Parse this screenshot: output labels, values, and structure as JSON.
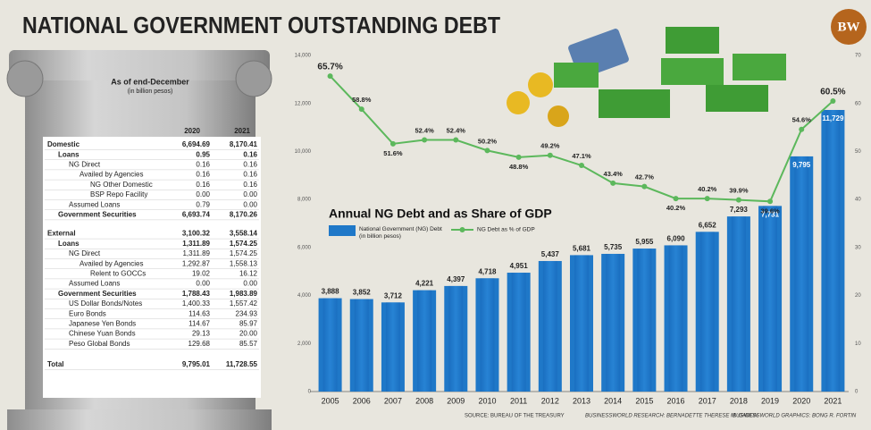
{
  "title": "NATIONAL GOVERNMENT OUTSTANDING DEBT",
  "logo": "BW",
  "table": {
    "title": "As of end-December",
    "subtitle": "(in billion pesos)",
    "columns": [
      "2020",
      "2021"
    ],
    "rows": [
      [
        "Domestic",
        "6,694.69",
        "8,170.41"
      ],
      [
        "Loans",
        "0.95",
        "0.16"
      ],
      [
        "NG Direct",
        "0.16",
        "0.16"
      ],
      [
        "Availed by Agencies",
        "0.16",
        "0.16"
      ],
      [
        "NG Other Domestic",
        "0.16",
        "0.16"
      ],
      [
        "BSP Repo Facility",
        "0.00",
        "0.00"
      ],
      [
        "Assumed Loans",
        "0.79",
        "0.00"
      ],
      [
        "Government Securities",
        "6,693.74",
        "8,170.26"
      ],
      [
        "External",
        "3,100.32",
        "3,558.14"
      ],
      [
        "Loans",
        "1,311.89",
        "1,574.25"
      ],
      [
        "NG Direct",
        "1,311.89",
        "1,574.25"
      ],
      [
        "Availed by Agencies",
        "1,292.87",
        "1,558.13"
      ],
      [
        "Relent to GOCCs",
        "19.02",
        "16.12"
      ],
      [
        "Assumed Loans",
        "0.00",
        "0.00"
      ],
      [
        "Government Securities",
        "1,788.43",
        "1,983.89"
      ],
      [
        "US Dollar Bonds/Notes",
        "1,400.33",
        "1,557.42"
      ],
      [
        "Euro Bonds",
        "114.63",
        "234.93"
      ],
      [
        "Japanese Yen Bonds",
        "114.67",
        "85.97"
      ],
      [
        "Chinese Yuan Bonds",
        "29.13",
        "20.00"
      ],
      [
        "Peso Global Bonds",
        "129.68",
        "85.57"
      ],
      [
        "Total",
        "9,795.01",
        "11,728.55"
      ]
    ]
  },
  "chart_data": {
    "type": "combo",
    "title": "Annual NG Debt and as Share of GDP",
    "categories": [
      "2005",
      "2006",
      "2007",
      "2008",
      "2009",
      "2010",
      "2011",
      "2012",
      "2013",
      "2014",
      "2015",
      "2016",
      "2017",
      "2018",
      "2019",
      "2020",
      "2021"
    ],
    "series": [
      {
        "name": "National Government (NG) Debt (in billion pesos)",
        "type": "bar",
        "color": "#1f78c8",
        "values": [
          3888,
          3852,
          3712,
          4221,
          4397,
          4718,
          4951,
          5437,
          5681,
          5735,
          5955,
          6090,
          6652,
          7293,
          7731,
          9795,
          11729
        ],
        "value_labels": [
          "3,888",
          "3,852",
          "3,712",
          "4,221",
          "4,397",
          "4,718",
          "4,951",
          "5,437",
          "5,681",
          "5,735",
          "5,955",
          "6,090",
          "6,652",
          "7,293",
          "7,731",
          "9,795",
          "11,729"
        ]
      },
      {
        "name": "NG Debt as % of GDP",
        "type": "line",
        "axis": "y2",
        "color": "#5cb85c",
        "values": [
          65.7,
          58.8,
          51.6,
          52.4,
          52.4,
          50.2,
          48.8,
          49.2,
          47.1,
          43.4,
          42.7,
          40.2,
          40.2,
          39.9,
          39.6,
          54.6,
          60.5
        ],
        "value_labels": [
          "65.7%",
          "58.8%",
          "51.6%",
          "52.4%",
          "52.4%",
          "50.2%",
          "48.8%",
          "49.2%",
          "47.1%",
          "43.4%",
          "42.7%",
          "40.2%",
          "40.2%",
          "39.9%",
          "39.6%",
          "54.6%",
          "60.5%"
        ]
      }
    ],
    "ylim": [
      0,
      14000
    ],
    "yticks": [
      0,
      {
        "value": 2000,
        "label": "2,000"
      },
      {
        "value": 4000,
        "label": "4,000"
      },
      {
        "value": 6000,
        "label": "6,000"
      },
      {
        "value": 8000,
        "label": "8,000"
      },
      {
        "value": 10000,
        "label": "10,000"
      },
      {
        "value": 12000,
        "label": "12,000"
      },
      {
        "value": 14000,
        "label": "14,000"
      }
    ],
    "y2lim": [
      0,
      70
    ],
    "y2ticks": [
      0,
      10,
      20,
      30,
      40,
      50,
      60,
      70
    ],
    "grid": false
  },
  "footer": {
    "source": "SOURCE: BUREAU OF THE TREASURY",
    "research": "BUSINESSWORLD RESEARCH: BERNADETTE THERESE M. GADON",
    "graphics": "BUSINESSWORLD GRAPHICS: BONG R. FORTIN"
  }
}
